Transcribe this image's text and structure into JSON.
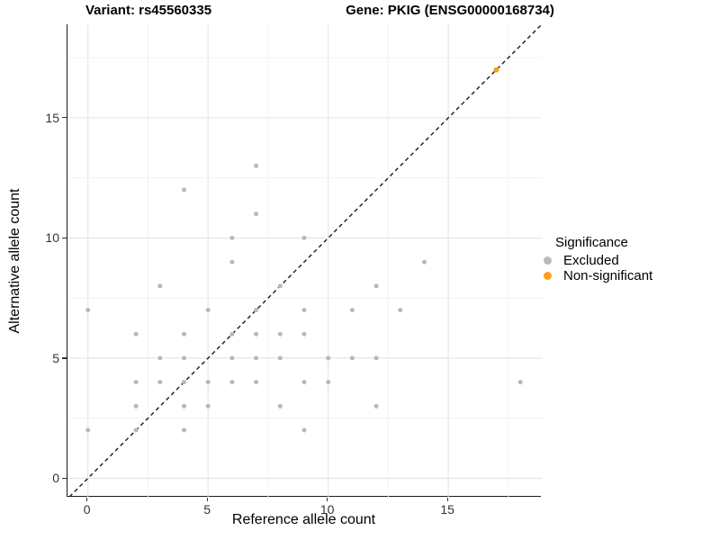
{
  "titles": {
    "variant": "Variant: rs45560335",
    "gene": "Gene: PKIG (ENSG00000168734)"
  },
  "chart_data": {
    "type": "scatter",
    "title": "Variant: rs45560335 | Gene: PKIG (ENSG00000168734)",
    "xlabel": "Reference allele count",
    "ylabel": "Alternative allele count",
    "xlim": [
      -0.85,
      18.89
    ],
    "ylim": [
      -0.77,
      18.89
    ],
    "x_ticks": [
      0,
      5,
      10,
      15
    ],
    "y_ticks": [
      0,
      5,
      10,
      15
    ],
    "x_minor_ticks": [
      2.5,
      7.5,
      12.5,
      17.5
    ],
    "y_minor_ticks": [
      2.5,
      7.5,
      12.5,
      17.5
    ],
    "grid": true,
    "identity_line": {
      "style": "dashed",
      "equation": "y = x",
      "color": "#1a1a1a"
    },
    "legend": {
      "title": "Significance",
      "position": "right",
      "entries": [
        {
          "label": "Excluded",
          "color": "#b9b9b9"
        },
        {
          "label": "Non-significant",
          "color": "#f9a01b"
        }
      ]
    },
    "series": [
      {
        "name": "Excluded",
        "color": "#b9b9b9",
        "points": [
          [
            0,
            2
          ],
          [
            0,
            7
          ],
          [
            2,
            2
          ],
          [
            2,
            3
          ],
          [
            2,
            4
          ],
          [
            2,
            6
          ],
          [
            3,
            4
          ],
          [
            3,
            5
          ],
          [
            3,
            8
          ],
          [
            4,
            2
          ],
          [
            4,
            3
          ],
          [
            4,
            4
          ],
          [
            4,
            5
          ],
          [
            4,
            6
          ],
          [
            4,
            12
          ],
          [
            5,
            3
          ],
          [
            5,
            4
          ],
          [
            5,
            7
          ],
          [
            6,
            4
          ],
          [
            6,
            5
          ],
          [
            6,
            6
          ],
          [
            6,
            9
          ],
          [
            6,
            10
          ],
          [
            7,
            4
          ],
          [
            7,
            5
          ],
          [
            7,
            6
          ],
          [
            7,
            7
          ],
          [
            7,
            11
          ],
          [
            7,
            13
          ],
          [
            8,
            3
          ],
          [
            8,
            5
          ],
          [
            8,
            6
          ],
          [
            8,
            8
          ],
          [
            9,
            2
          ],
          [
            9,
            4
          ],
          [
            9,
            6
          ],
          [
            9,
            7
          ],
          [
            9,
            10
          ],
          [
            10,
            4
          ],
          [
            10,
            5
          ],
          [
            11,
            5
          ],
          [
            11,
            7
          ],
          [
            12,
            3
          ],
          [
            12,
            5
          ],
          [
            12,
            8
          ],
          [
            13,
            7
          ],
          [
            14,
            9
          ],
          [
            18,
            4
          ]
        ]
      },
      {
        "name": "Non-significant",
        "color": "#f9a01b",
        "points": [
          [
            17,
            17
          ]
        ]
      }
    ],
    "colors": {
      "grid_major": "#e4e4e4",
      "grid_minor": "#f2f2f2",
      "axis_line": "#1a1a1a",
      "tick_text": "#333333"
    }
  }
}
